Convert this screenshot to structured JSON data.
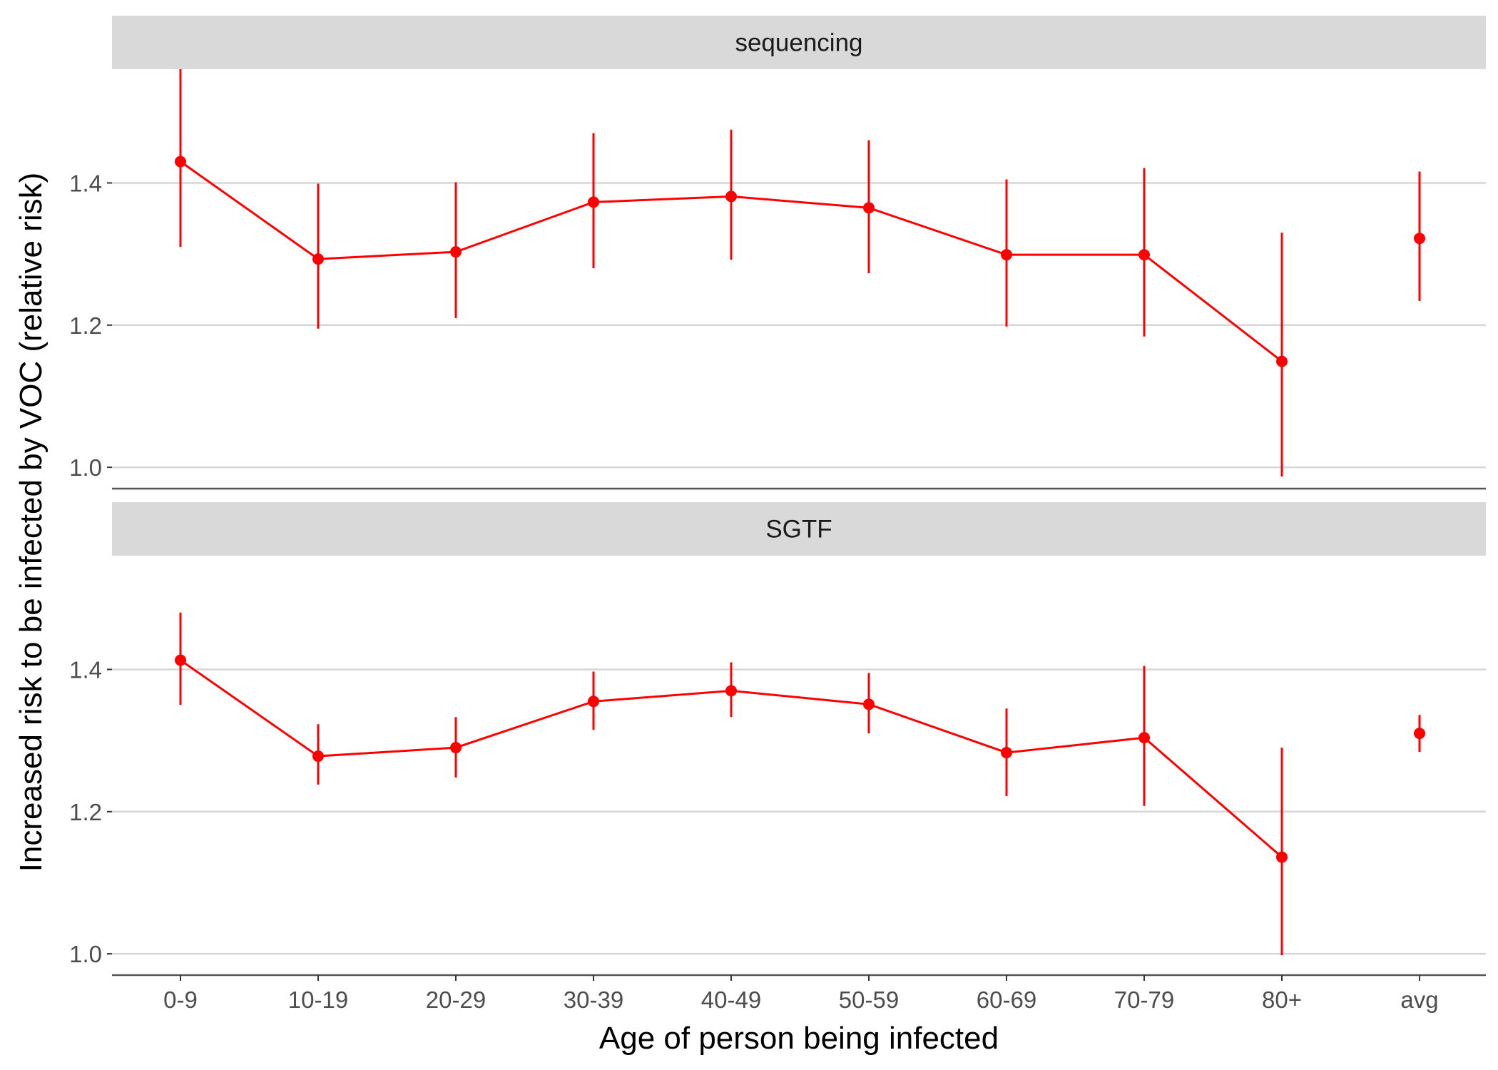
{
  "chart_data": {
    "type": "line",
    "xlabel": "Age of person being infected",
    "ylabel": "Increased risk to be infected by VOC (relative risk)",
    "categories": [
      "0-9",
      "10-19",
      "20-29",
      "30-39",
      "40-49",
      "50-59",
      "60-69",
      "70-79",
      "80+",
      "avg"
    ],
    "ylim": [
      0.97,
      1.56
    ],
    "yticks": [
      "1.0",
      "1.2",
      "1.4"
    ],
    "grid": "horizontal major",
    "color": "#ff0000",
    "panels": [
      {
        "strip": "sequencing",
        "line_categories": [
          "0-9",
          "10-19",
          "20-29",
          "30-39",
          "40-49",
          "50-59",
          "60-69",
          "70-79",
          "80+"
        ],
        "values": [
          1.43,
          1.293,
          1.303,
          1.373,
          1.381,
          1.365,
          1.299,
          1.299,
          1.149,
          1.322
        ],
        "lower": [
          1.31,
          1.195,
          1.21,
          1.28,
          1.292,
          1.273,
          1.198,
          1.184,
          0.987,
          1.234
        ],
        "upper": [
          1.56,
          1.399,
          1.401,
          1.47,
          1.475,
          1.46,
          1.405,
          1.421,
          1.33,
          1.416
        ]
      },
      {
        "strip": "SGTF",
        "line_categories": [
          "0-9",
          "10-19",
          "20-29",
          "30-39",
          "40-49",
          "50-59",
          "60-69",
          "70-79",
          "80+"
        ],
        "values": [
          1.413,
          1.278,
          1.29,
          1.355,
          1.37,
          1.351,
          1.283,
          1.304,
          1.136,
          1.31
        ],
        "lower": [
          1.35,
          1.238,
          1.248,
          1.315,
          1.333,
          1.31,
          1.222,
          1.208,
          0.998,
          1.284
        ],
        "upper": [
          1.48,
          1.323,
          1.333,
          1.397,
          1.41,
          1.395,
          1.345,
          1.405,
          1.29,
          1.336
        ]
      }
    ]
  }
}
